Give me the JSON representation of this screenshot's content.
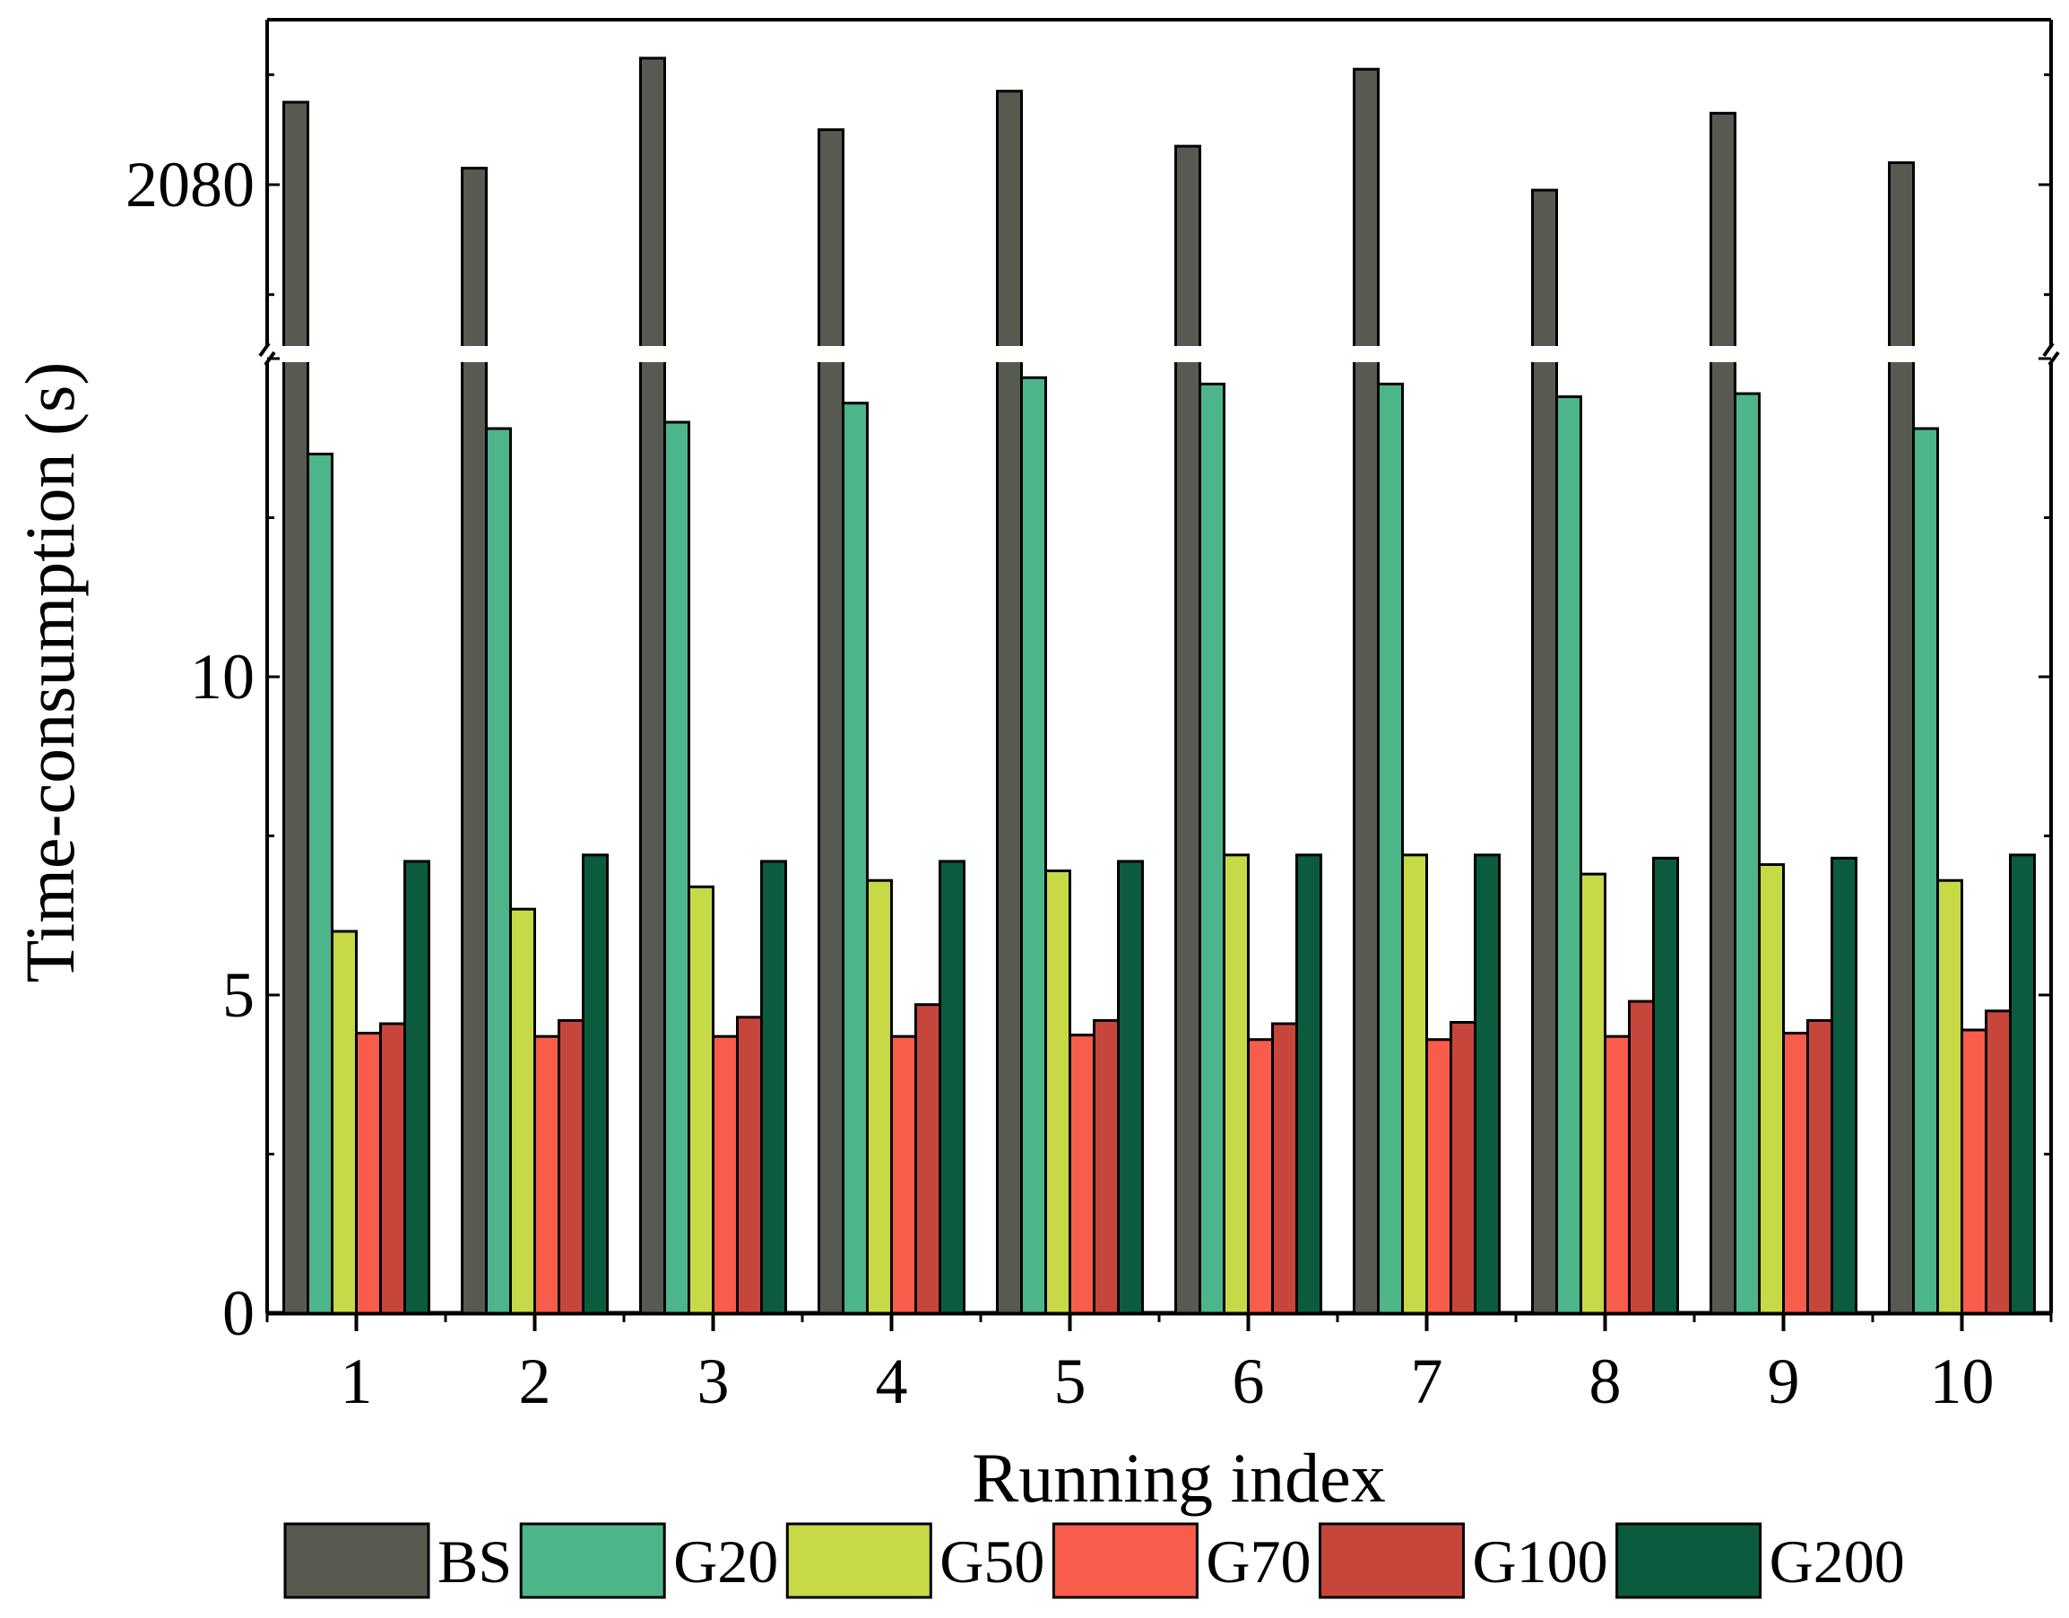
{
  "chart_data": {
    "type": "bar",
    "xlabel": "Running index",
    "ylabel": "Time-consumption (s)",
    "categories": [
      "1",
      "2",
      "3",
      "4",
      "5",
      "6",
      "7",
      "8",
      "9",
      "10"
    ],
    "axis_break": true,
    "lower_ylim": [
      0,
      15
    ],
    "upper_ylim": [
      2077,
      2083
    ],
    "y_ticks_lower": [
      "0",
      "5",
      "10"
    ],
    "y_ticks_upper": [
      "2080"
    ],
    "legend_position": "bottom",
    "series": [
      {
        "name": "BS",
        "color": "#575a50",
        "values": [
          2081.5,
          2080.3,
          2082.3,
          2081.0,
          2081.7,
          2080.7,
          2082.1,
          2079.9,
          2081.3,
          2080.4
        ]
      },
      {
        "name": "G20",
        "color": "#4db58a",
        "values": [
          13.5,
          13.9,
          14.0,
          14.3,
          14.7,
          14.6,
          14.6,
          14.4,
          14.45,
          13.9
        ]
      },
      {
        "name": "G50",
        "color": "#c8d948",
        "values": [
          6.0,
          6.35,
          6.7,
          6.8,
          6.95,
          7.2,
          7.2,
          6.9,
          7.05,
          6.8
        ]
      },
      {
        "name": "G70",
        "color": "#f85c4a",
        "values": [
          4.4,
          4.35,
          4.35,
          4.35,
          4.37,
          4.3,
          4.3,
          4.35,
          4.4,
          4.45
        ]
      },
      {
        "name": "G100",
        "color": "#c7463c",
        "values": [
          4.55,
          4.6,
          4.65,
          4.85,
          4.6,
          4.55,
          4.57,
          4.9,
          4.6,
          4.75
        ]
      },
      {
        "name": "G200",
        "color": "#0b5c3e",
        "values": [
          7.1,
          7.2,
          7.1,
          7.1,
          7.1,
          7.2,
          7.2,
          7.15,
          7.15,
          7.2
        ]
      }
    ]
  }
}
